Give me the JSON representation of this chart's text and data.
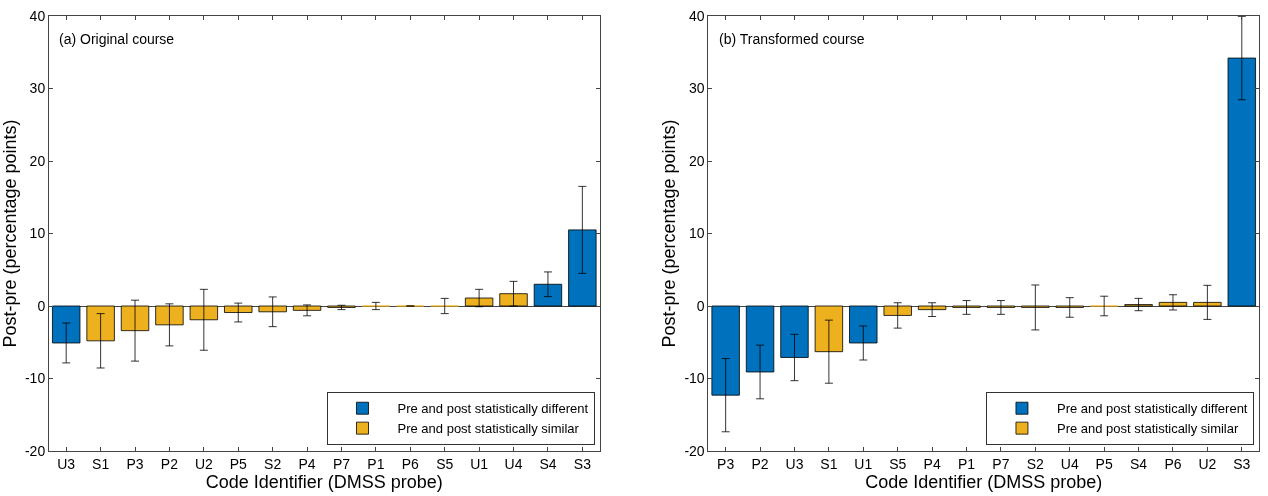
{
  "chart_data": [
    {
      "type": "bar",
      "annotations": [
        "(a) Original course"
      ],
      "xlabel": "Code Identifier (DMSS probe)",
      "ylabel": "Post-pre (percentage points)",
      "categories": [
        "U3",
        "S1",
        "P3",
        "P2",
        "U2",
        "P5",
        "S2",
        "P4",
        "P7",
        "P1",
        "P6",
        "S5",
        "U1",
        "U4",
        "S4",
        "S3"
      ],
      "series": [
        {
          "name": "Pre and post statistically different",
          "color": "#0072bd",
          "values": [
            -5.1,
            null,
            null,
            null,
            null,
            null,
            null,
            null,
            null,
            null,
            null,
            null,
            null,
            null,
            3.0,
            10.5
          ],
          "errors": [
            2.75,
            null,
            null,
            null,
            null,
            null,
            null,
            null,
            null,
            null,
            null,
            null,
            null,
            null,
            1.7,
            6.0
          ]
        },
        {
          "name": "Pre and post statistically similar",
          "color": "#edb120",
          "values": [
            null,
            -4.8,
            -3.4,
            -2.6,
            -1.9,
            -0.9,
            -0.8,
            -0.6,
            -0.2,
            0,
            0,
            0,
            1.1,
            1.7,
            null,
            null
          ],
          "errors": [
            null,
            3.75,
            4.2,
            2.9,
            4.2,
            1.3,
            2.05,
            0.75,
            0.3,
            0.5,
            null,
            1.05,
            1.2,
            1.7,
            null,
            null
          ]
        }
      ],
      "ylim": [
        -20,
        40
      ],
      "yticks": [
        -20,
        -10,
        0,
        10,
        20,
        30,
        40
      ],
      "legend": "bottom right"
    },
    {
      "type": "bar",
      "annotations": [
        "(b) Transformed course"
      ],
      "xlabel": "Code Identifier (DMSS probe)",
      "ylabel": "Post-pre (percentage points)",
      "categories": [
        "P3",
        "P2",
        "U3",
        "S1",
        "U1",
        "S5",
        "P4",
        "P1",
        "P7",
        "S2",
        "U4",
        "P5",
        "S4",
        "P6",
        "U2",
        "S3"
      ],
      "series": [
        {
          "name": "Pre and post statistically different",
          "color": "#0072bd",
          "values": [
            -12.3,
            -9.1,
            -7.1,
            null,
            -5.1,
            null,
            null,
            null,
            null,
            null,
            null,
            null,
            null,
            null,
            null,
            34.2
          ],
          "errors": [
            5.05,
            3.7,
            3.2,
            null,
            2.35,
            null,
            null,
            null,
            null,
            null,
            null,
            null,
            null,
            null,
            null,
            5.75
          ]
        },
        {
          "name": "Pre and post statistically similar",
          "color": "#edb120",
          "values": [
            null,
            null,
            null,
            -6.3,
            null,
            -1.3,
            -0.5,
            -0.2,
            -0.2,
            -0.2,
            -0.2,
            0,
            0.2,
            0.5,
            0.5,
            null
          ],
          "errors": [
            null,
            null,
            null,
            4.35,
            null,
            1.75,
            0.95,
            0.95,
            0.95,
            3.1,
            1.35,
            1.35,
            0.85,
            1.05,
            2.35,
            null
          ]
        }
      ],
      "ylim": [
        -20,
        40
      ],
      "yticks": [
        -20,
        -10,
        0,
        10,
        20,
        30,
        40
      ],
      "legend": "bottom right"
    }
  ]
}
